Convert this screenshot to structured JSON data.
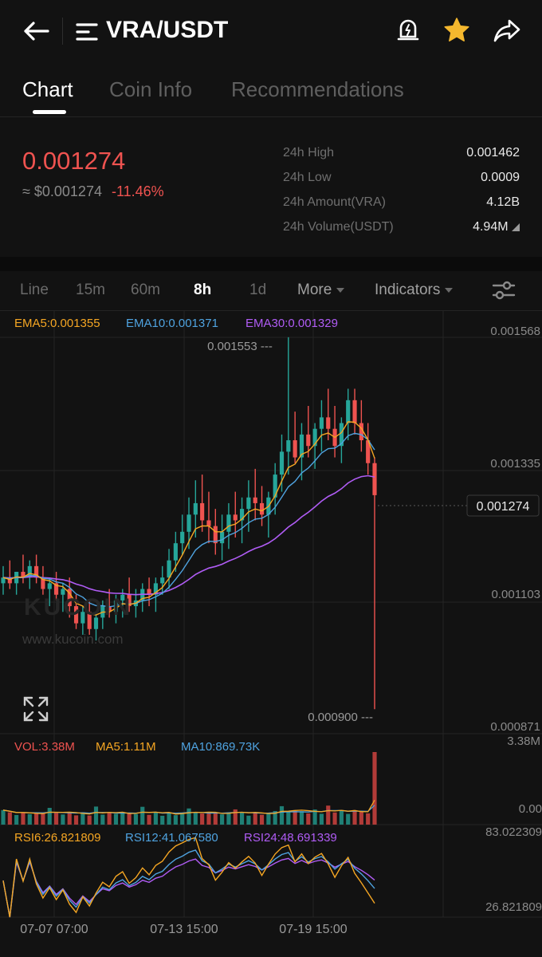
{
  "header": {
    "pair": "VRA/USDT"
  },
  "tabs": [
    "Chart",
    "Coin Info",
    "Recommendations"
  ],
  "ticker": {
    "price": "0.001274",
    "usd_price": "≈ $0.001274",
    "change": "-11.46%",
    "stats": [
      {
        "label": "24h High",
        "value": "0.001462"
      },
      {
        "label": "24h Low",
        "value": "0.0009"
      },
      {
        "label": "24h Amount(VRA)",
        "value": "4.12B"
      },
      {
        "label": "24h Volume(USDT)",
        "value": "4.94M"
      }
    ]
  },
  "timeframes": {
    "line": "Line",
    "m15": "15m",
    "m60": "60m",
    "h8": "8h",
    "d1": "1d",
    "more": "More",
    "indicators": "Indicators"
  },
  "indicators": {
    "ema5": "EMA5:0.001355",
    "ema10": "EMA10:0.001371",
    "ema30": "EMA30:0.001329",
    "vol": "VOL:3.38M",
    "ma5": "MA5:1.11M",
    "ma10": "MA10:869.73K",
    "rsi6": "RSI6:26.821809",
    "rsi12": "RSI12:41.067580",
    "rsi24": "RSI24:48.691339"
  },
  "watermark": "www.kucoin.com",
  "watermark_logo": "KUCOIN",
  "colors": {
    "up": "#26a69a",
    "down": "#ef5350",
    "ema5": "#f5a623",
    "ema10": "#4fa3e0",
    "ema30": "#b05cf5",
    "star": "#f5b82e"
  },
  "chart_data": {
    "type": "candlestick",
    "y_axis_labels": [
      "0.001568",
      "0.001335",
      "0.001103",
      "0.000871"
    ],
    "ylim": [
      0.000871,
      0.001568
    ],
    "current_price_label": "0.001274",
    "high_marker": "0.001553",
    "low_marker": "0.000900",
    "x_tick_labels": [
      "07-07 07:00",
      "07-13 15:00",
      "07-19 15:00"
    ],
    "candles": [
      [
        0.00112,
        0.00115,
        0.0011,
        0.00113
      ],
      [
        0.00113,
        0.00116,
        0.00111,
        0.00112
      ],
      [
        0.00112,
        0.00114,
        0.0011,
        0.00114
      ],
      [
        0.00114,
        0.00117,
        0.00112,
        0.00113
      ],
      [
        0.00113,
        0.00116,
        0.00111,
        0.00115
      ],
      [
        0.00115,
        0.00117,
        0.00112,
        0.00113
      ],
      [
        0.00113,
        0.00115,
        0.0011,
        0.00111
      ],
      [
        0.00111,
        0.00113,
        0.00108,
        0.00112
      ],
      [
        0.00112,
        0.00114,
        0.00109,
        0.0011
      ],
      [
        0.0011,
        0.00112,
        0.00107,
        0.00111
      ],
      [
        0.00111,
        0.00113,
        0.00106,
        0.00108
      ],
      [
        0.00108,
        0.0011,
        0.00104,
        0.00105
      ],
      [
        0.00105,
        0.00108,
        0.00103,
        0.00107
      ],
      [
        0.00107,
        0.00109,
        0.00103,
        0.00104
      ],
      [
        0.00104,
        0.00107,
        0.00102,
        0.00106
      ],
      [
        0.00106,
        0.00109,
        0.00104,
        0.00108
      ],
      [
        0.00108,
        0.00111,
        0.00106,
        0.00107
      ],
      [
        0.00107,
        0.0011,
        0.00105,
        0.00109
      ],
      [
        0.00109,
        0.00111,
        0.00106,
        0.0011
      ],
      [
        0.0011,
        0.00113,
        0.00107,
        0.00108
      ],
      [
        0.00108,
        0.00111,
        0.00106,
        0.00109
      ],
      [
        0.00109,
        0.00112,
        0.00107,
        0.00111
      ],
      [
        0.00111,
        0.00113,
        0.00108,
        0.0011
      ],
      [
        0.0011,
        0.00113,
        0.00107,
        0.00112
      ],
      [
        0.00112,
        0.00115,
        0.0011,
        0.00113
      ],
      [
        0.00113,
        0.00118,
        0.00111,
        0.00116
      ],
      [
        0.00116,
        0.00121,
        0.00114,
        0.00119
      ],
      [
        0.00119,
        0.00124,
        0.00117,
        0.00121
      ],
      [
        0.00121,
        0.00127,
        0.00118,
        0.00124
      ],
      [
        0.00124,
        0.0013,
        0.0012,
        0.00126
      ],
      [
        0.00126,
        0.00131,
        0.00121,
        0.00123
      ],
      [
        0.00123,
        0.00128,
        0.00119,
        0.00122
      ],
      [
        0.00122,
        0.00125,
        0.00117,
        0.00119
      ],
      [
        0.00119,
        0.00124,
        0.00116,
        0.00121
      ],
      [
        0.00121,
        0.00126,
        0.00118,
        0.00124
      ],
      [
        0.00124,
        0.00128,
        0.0012,
        0.00123
      ],
      [
        0.00123,
        0.00127,
        0.00119,
        0.00125
      ],
      [
        0.00125,
        0.0013,
        0.00121,
        0.00127
      ],
      [
        0.00127,
        0.00132,
        0.00123,
        0.00126
      ],
      [
        0.00126,
        0.00129,
        0.00122,
        0.00124
      ],
      [
        0.00124,
        0.00128,
        0.0012,
        0.00127
      ],
      [
        0.00127,
        0.00133,
        0.00124,
        0.00131
      ],
      [
        0.00131,
        0.00138,
        0.00128,
        0.00135
      ],
      [
        0.00135,
        0.00155,
        0.00131,
        0.00137
      ],
      [
        0.00137,
        0.00142,
        0.00133,
        0.00134
      ],
      [
        0.00134,
        0.0014,
        0.0013,
        0.00138
      ],
      [
        0.00138,
        0.00143,
        0.00134,
        0.00136
      ],
      [
        0.00136,
        0.0014,
        0.00132,
        0.00139
      ],
      [
        0.00139,
        0.00144,
        0.00135,
        0.00141
      ],
      [
        0.00141,
        0.00146,
        0.00137,
        0.00139
      ],
      [
        0.00139,
        0.00143,
        0.00134,
        0.00136
      ],
      [
        0.00136,
        0.00141,
        0.00133,
        0.0014
      ],
      [
        0.0014,
        0.00146,
        0.00137,
        0.00144
      ],
      [
        0.00144,
        0.00146,
        0.00138,
        0.0014
      ],
      [
        0.0014,
        0.00144,
        0.00135,
        0.00137
      ],
      [
        0.00137,
        0.0014,
        0.00131,
        0.00133
      ],
      [
        0.00133,
        0.00134,
        0.0009,
        0.001274
      ]
    ]
  }
}
